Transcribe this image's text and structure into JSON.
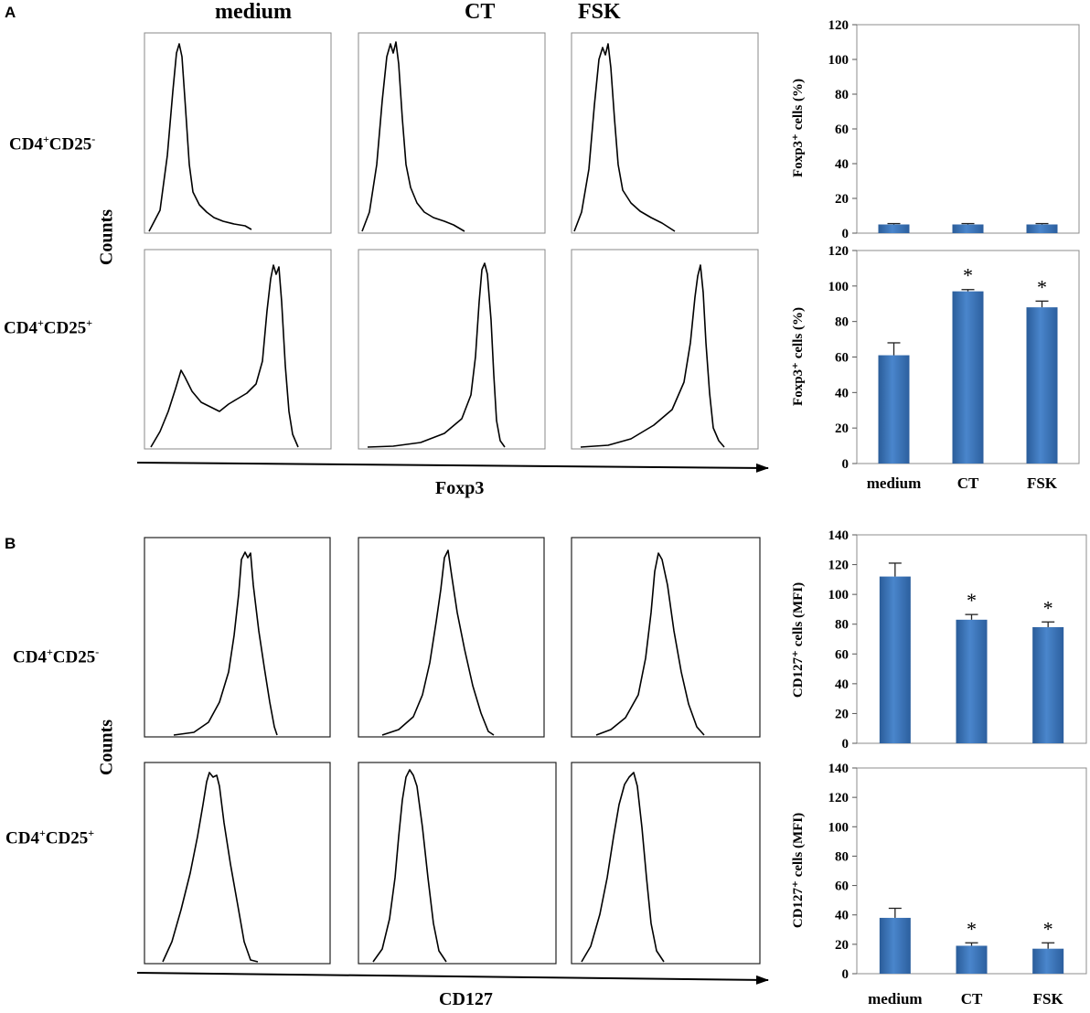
{
  "panels": [
    {
      "letter": "A",
      "column_headers": [
        "medium",
        "CT",
        "FSK"
      ],
      "rows": [
        {
          "label_main": "CD4",
          "sup1": "+",
          "label_mid": "CD25",
          "sup2": "-"
        },
        {
          "label_main": "CD4",
          "sup1": "+",
          "label_mid": "CD25",
          "sup2": "+"
        }
      ],
      "histogram_ylabel": "Counts",
      "histogram_xlabel": "Foxp3"
    },
    {
      "letter": "B",
      "rows": [
        {
          "label_main": "CD4",
          "sup1": "+",
          "label_mid": "CD25",
          "sup2": "-"
        },
        {
          "label_main": "CD4",
          "sup1": "+",
          "label_mid": "CD25",
          "sup2": "+"
        }
      ],
      "histogram_ylabel": "Counts",
      "histogram_xlabel": "CD127"
    }
  ],
  "chart_data": [
    {
      "type": "bar",
      "panel": "A-top",
      "categories": [
        "medium",
        "CT",
        "FSK"
      ],
      "values": [
        5,
        5,
        5
      ],
      "errors": [
        0.5,
        0.5,
        0.5
      ],
      "significance": [
        "",
        "",
        ""
      ],
      "ylabel": "Foxp3⁺ cells (%)",
      "ylim": [
        0,
        120
      ],
      "yticks": [
        0,
        20,
        40,
        60,
        80,
        100,
        120
      ],
      "show_xlabels": false,
      "color": "#3a72b8"
    },
    {
      "type": "bar",
      "panel": "A-bottom",
      "categories": [
        "medium",
        "CT",
        "FSK"
      ],
      "values": [
        61,
        97,
        88
      ],
      "errors": [
        7,
        1,
        3.5
      ],
      "significance": [
        "",
        "*",
        "*"
      ],
      "ylabel": "Foxp3⁺ cells (%)",
      "ylim": [
        0,
        120
      ],
      "yticks": [
        0,
        20,
        40,
        60,
        80,
        100,
        120
      ],
      "show_xlabels": true,
      "color": "#3a72b8"
    },
    {
      "type": "bar",
      "panel": "B-top",
      "categories": [
        "medium",
        "CT",
        "FSK"
      ],
      "values": [
        112,
        83,
        78
      ],
      "errors": [
        9,
        3.5,
        3.5
      ],
      "significance": [
        "",
        "*",
        "*"
      ],
      "ylabel": "CD127⁺ cells (MFI)",
      "ylim": [
        0,
        140
      ],
      "yticks": [
        0,
        20,
        40,
        60,
        80,
        100,
        120,
        140
      ],
      "show_xlabels": false,
      "color": "#3a72b8"
    },
    {
      "type": "bar",
      "panel": "B-bottom",
      "categories": [
        "medium",
        "CT",
        "FSK"
      ],
      "values": [
        38,
        19,
        17
      ],
      "errors": [
        6.5,
        2,
        4
      ],
      "significance": [
        "",
        "*",
        "*"
      ],
      "ylabel": "CD127⁺ cells (MFI)",
      "ylim": [
        0,
        140
      ],
      "yticks": [
        0,
        20,
        40,
        60,
        80,
        100,
        120,
        140
      ],
      "show_xlabels": true,
      "color": "#3a72b8"
    }
  ]
}
